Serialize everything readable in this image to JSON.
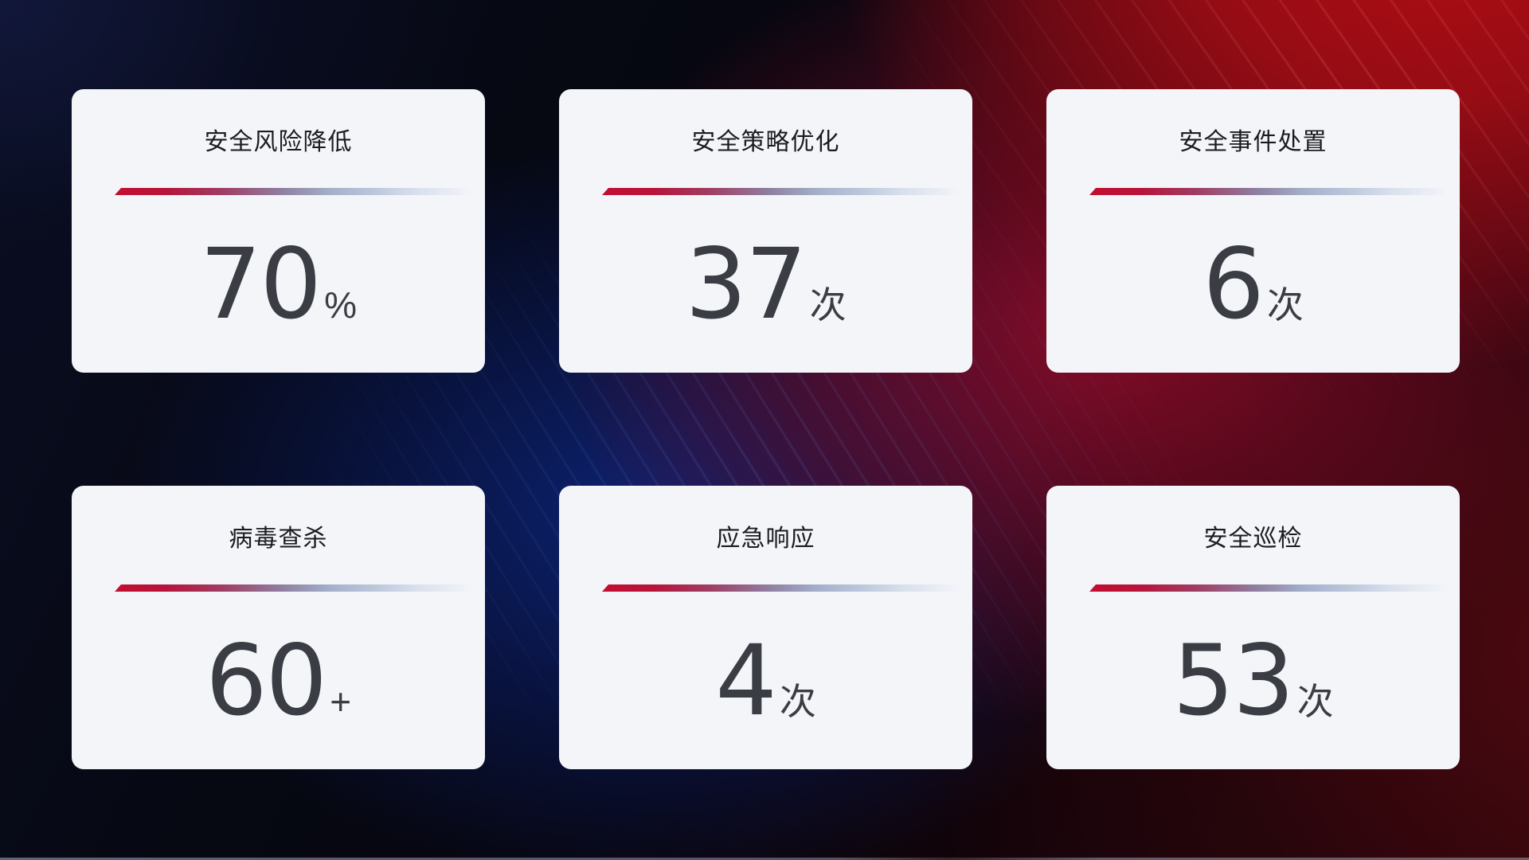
{
  "theme": {
    "accent_red": "#c30e31",
    "divider_fade_blue": "#bac7db",
    "card_background": "#f3f5f9",
    "title_color": "#1b1c20",
    "value_color": "#3a3d43",
    "background_blue_glow": "#0d2478",
    "background_red": "#960c14"
  },
  "cards": [
    {
      "title": "安全风险降低",
      "value": "70",
      "unit": "%"
    },
    {
      "title": "安全策略优化",
      "value": "37",
      "unit": "次"
    },
    {
      "title": "安全事件处置",
      "value": "6",
      "unit": "次"
    },
    {
      "title": "病毒查杀",
      "value": "60",
      "unit": "+"
    },
    {
      "title": "应急响应",
      "value": "4",
      "unit": "次"
    },
    {
      "title": "安全巡检",
      "value": "53",
      "unit": "次"
    }
  ]
}
